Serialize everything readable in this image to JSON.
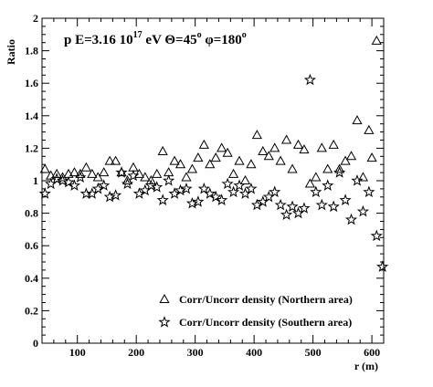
{
  "chart_data": {
    "type": "scatter",
    "title": {
      "prefix": "p E=3.16 10",
      "energy_exponent": "17",
      "theta_part": " eV Θ=45",
      "theta_unit": "o",
      "phi_part": " φ=180",
      "phi_unit": "o"
    },
    "xlabel": "r (m)",
    "ylabel": "Ratio",
    "xlim": [
      40,
      620
    ],
    "ylim": [
      0,
      2
    ],
    "x_ticks": [
      "100",
      "200",
      "300",
      "400",
      "500",
      "600"
    ],
    "y_ticks": [
      "0",
      "0.2",
      "0.4",
      "0.6",
      "0.8",
      "1",
      "1.2",
      "1.4",
      "1.6",
      "1.8",
      "2"
    ],
    "grid": false,
    "legend_position": "bottom-right",
    "series": [
      {
        "name": "Corr/Uncorr density (Northern area)",
        "marker": "triangle",
        "color": "#000000",
        "points": [
          [
            45,
            1.07
          ],
          [
            55,
            1.03
          ],
          [
            65,
            1.04
          ],
          [
            75,
            1.02
          ],
          [
            85,
            1.04
          ],
          [
            95,
            1.05
          ],
          [
            105,
            1.04
          ],
          [
            115,
            1.08
          ],
          [
            125,
            1.04
          ],
          [
            135,
            1.02
          ],
          [
            145,
            1.05
          ],
          [
            155,
            1.12
          ],
          [
            165,
            1.12
          ],
          [
            175,
            1.05
          ],
          [
            185,
            1.0
          ],
          [
            195,
            1.08
          ],
          [
            205,
            1.04
          ],
          [
            215,
            1.02
          ],
          [
            225,
            1.0
          ],
          [
            235,
            1.04
          ],
          [
            245,
            1.18
          ],
          [
            255,
            1.05
          ],
          [
            265,
            1.12
          ],
          [
            275,
            1.1
          ],
          [
            285,
            1.02
          ],
          [
            295,
            1.07
          ],
          [
            305,
            1.14
          ],
          [
            315,
            1.22
          ],
          [
            325,
            1.1
          ],
          [
            335,
            1.14
          ],
          [
            345,
            1.2
          ],
          [
            355,
            1.17
          ],
          [
            365,
            1.04
          ],
          [
            375,
            1.12
          ],
          [
            385,
            1.0
          ],
          [
            395,
            1.1
          ],
          [
            405,
            1.28
          ],
          [
            415,
            1.18
          ],
          [
            425,
            1.15
          ],
          [
            435,
            1.2
          ],
          [
            445,
            1.12
          ],
          [
            455,
            1.25
          ],
          [
            465,
            1.07
          ],
          [
            475,
            1.22
          ],
          [
            485,
            1.19
          ],
          [
            495,
            0.98
          ],
          [
            505,
            1.02
          ],
          [
            515,
            1.2
          ],
          [
            525,
            1.07
          ],
          [
            535,
            1.22
          ],
          [
            545,
            1.07
          ],
          [
            555,
            1.12
          ],
          [
            565,
            1.15
          ],
          [
            575,
            1.37
          ],
          [
            585,
            1.02
          ],
          [
            595,
            1.31
          ],
          [
            600,
            1.14
          ],
          [
            608,
            1.86
          ]
        ]
      },
      {
        "name": "Corr/Uncorr density (Southern area)",
        "marker": "star",
        "color": "#000000",
        "points": [
          [
            45,
            0.92
          ],
          [
            55,
            0.98
          ],
          [
            65,
            1.01
          ],
          [
            75,
            1.0
          ],
          [
            85,
            0.99
          ],
          [
            95,
            0.97
          ],
          [
            105,
            1.02
          ],
          [
            115,
            0.92
          ],
          [
            125,
            0.92
          ],
          [
            135,
            0.95
          ],
          [
            145,
            0.97
          ],
          [
            155,
            0.9
          ],
          [
            165,
            0.91
          ],
          [
            175,
            1.05
          ],
          [
            185,
            0.98
          ],
          [
            195,
            1.03
          ],
          [
            205,
            0.92
          ],
          [
            215,
            0.94
          ],
          [
            225,
            0.97
          ],
          [
            235,
            0.96
          ],
          [
            245,
            0.88
          ],
          [
            255,
            1.0
          ],
          [
            265,
            0.92
          ],
          [
            275,
            0.94
          ],
          [
            285,
            0.95
          ],
          [
            295,
            0.86
          ],
          [
            305,
            0.87
          ],
          [
            315,
            0.95
          ],
          [
            325,
            0.92
          ],
          [
            335,
            0.9
          ],
          [
            345,
            0.88
          ],
          [
            355,
            0.98
          ],
          [
            365,
            0.93
          ],
          [
            375,
            0.97
          ],
          [
            385,
            0.92
          ],
          [
            395,
            0.95
          ],
          [
            405,
            0.85
          ],
          [
            415,
            0.87
          ],
          [
            425,
            0.9
          ],
          [
            435,
            0.93
          ],
          [
            445,
            0.85
          ],
          [
            455,
            0.79
          ],
          [
            465,
            0.84
          ],
          [
            475,
            0.8
          ],
          [
            485,
            0.83
          ],
          [
            495,
            1.62
          ],
          [
            505,
            0.93
          ],
          [
            515,
            0.85
          ],
          [
            525,
            0.97
          ],
          [
            535,
            0.84
          ],
          [
            545,
            1.05
          ],
          [
            555,
            0.88
          ],
          [
            565,
            0.76
          ],
          [
            575,
            1.0
          ],
          [
            585,
            0.81
          ],
          [
            595,
            0.93
          ],
          [
            608,
            0.66
          ],
          [
            618,
            0.47
          ]
        ]
      }
    ]
  }
}
